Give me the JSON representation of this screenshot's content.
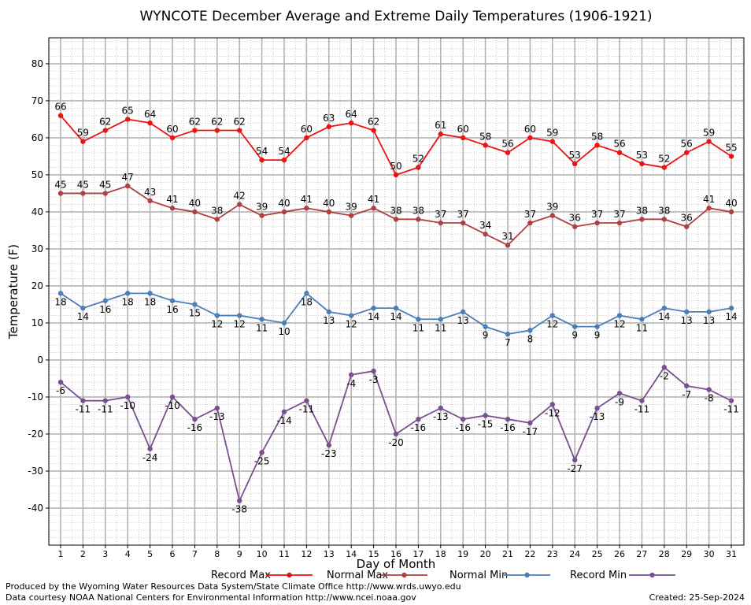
{
  "chart_data": {
    "type": "line",
    "title": "WYNCOTE December Average and Extreme Daily Temperatures (1906-1921)",
    "xlabel": "Day of Month",
    "ylabel": "Temperature (F)",
    "x": [
      1,
      2,
      3,
      4,
      5,
      6,
      7,
      8,
      9,
      10,
      11,
      12,
      13,
      14,
      15,
      16,
      17,
      18,
      19,
      20,
      21,
      22,
      23,
      24,
      25,
      26,
      27,
      28,
      29,
      30,
      31
    ],
    "ylim": [
      -50,
      87
    ],
    "yticks": [
      -40,
      -30,
      -20,
      -10,
      0,
      10,
      20,
      30,
      40,
      50,
      60,
      70,
      80
    ],
    "grid": true,
    "legend_position": "bottom",
    "series": [
      {
        "name": "Record Max",
        "color": "#ee1111",
        "values": [
          66,
          59,
          62,
          65,
          64,
          60,
          62,
          62,
          62,
          54,
          54,
          60,
          63,
          64,
          62,
          50,
          52,
          61,
          60,
          58,
          56,
          60,
          59,
          53,
          58,
          56,
          53,
          52,
          56,
          59,
          55
        ]
      },
      {
        "name": "Normal Max",
        "color": "#b04040",
        "values": [
          45,
          45,
          45,
          47,
          43,
          41,
          40,
          38,
          42,
          39,
          40,
          41,
          40,
          39,
          41,
          38,
          38,
          37,
          37,
          34,
          31,
          37,
          39,
          36,
          37,
          37,
          38,
          38,
          36,
          41,
          40
        ]
      },
      {
        "name": "Normal Min",
        "color": "#4a7fb5",
        "values": [
          18,
          14,
          16,
          18,
          18,
          16,
          15,
          12,
          12,
          11,
          10,
          18,
          13,
          12,
          14,
          14,
          11,
          11,
          13,
          9,
          7,
          8,
          12,
          9,
          9,
          12,
          11,
          14,
          13,
          13,
          14
        ]
      },
      {
        "name": "Record Min",
        "color": "#7a4f8f",
        "values": [
          -6,
          -11,
          -11,
          -10,
          -24,
          -10,
          -16,
          -13,
          -38,
          -25,
          -14,
          -11,
          -23,
          -4,
          -3,
          -20,
          -16,
          -13,
          -16,
          -15,
          -16,
          -17,
          -12,
          -27,
          -13,
          -9,
          -11,
          -2,
          -7,
          -8,
          -11
        ]
      }
    ]
  },
  "footer": {
    "produced_by": "Produced by the Wyoming Water Resources Data System/State Climate Office http://www.wrds.uwyo.edu",
    "courtesy": "Data courtesy NOAA National Centers for Environmental Information http://www.ncei.noaa.gov",
    "created": "Created:  25-Sep-2024"
  }
}
